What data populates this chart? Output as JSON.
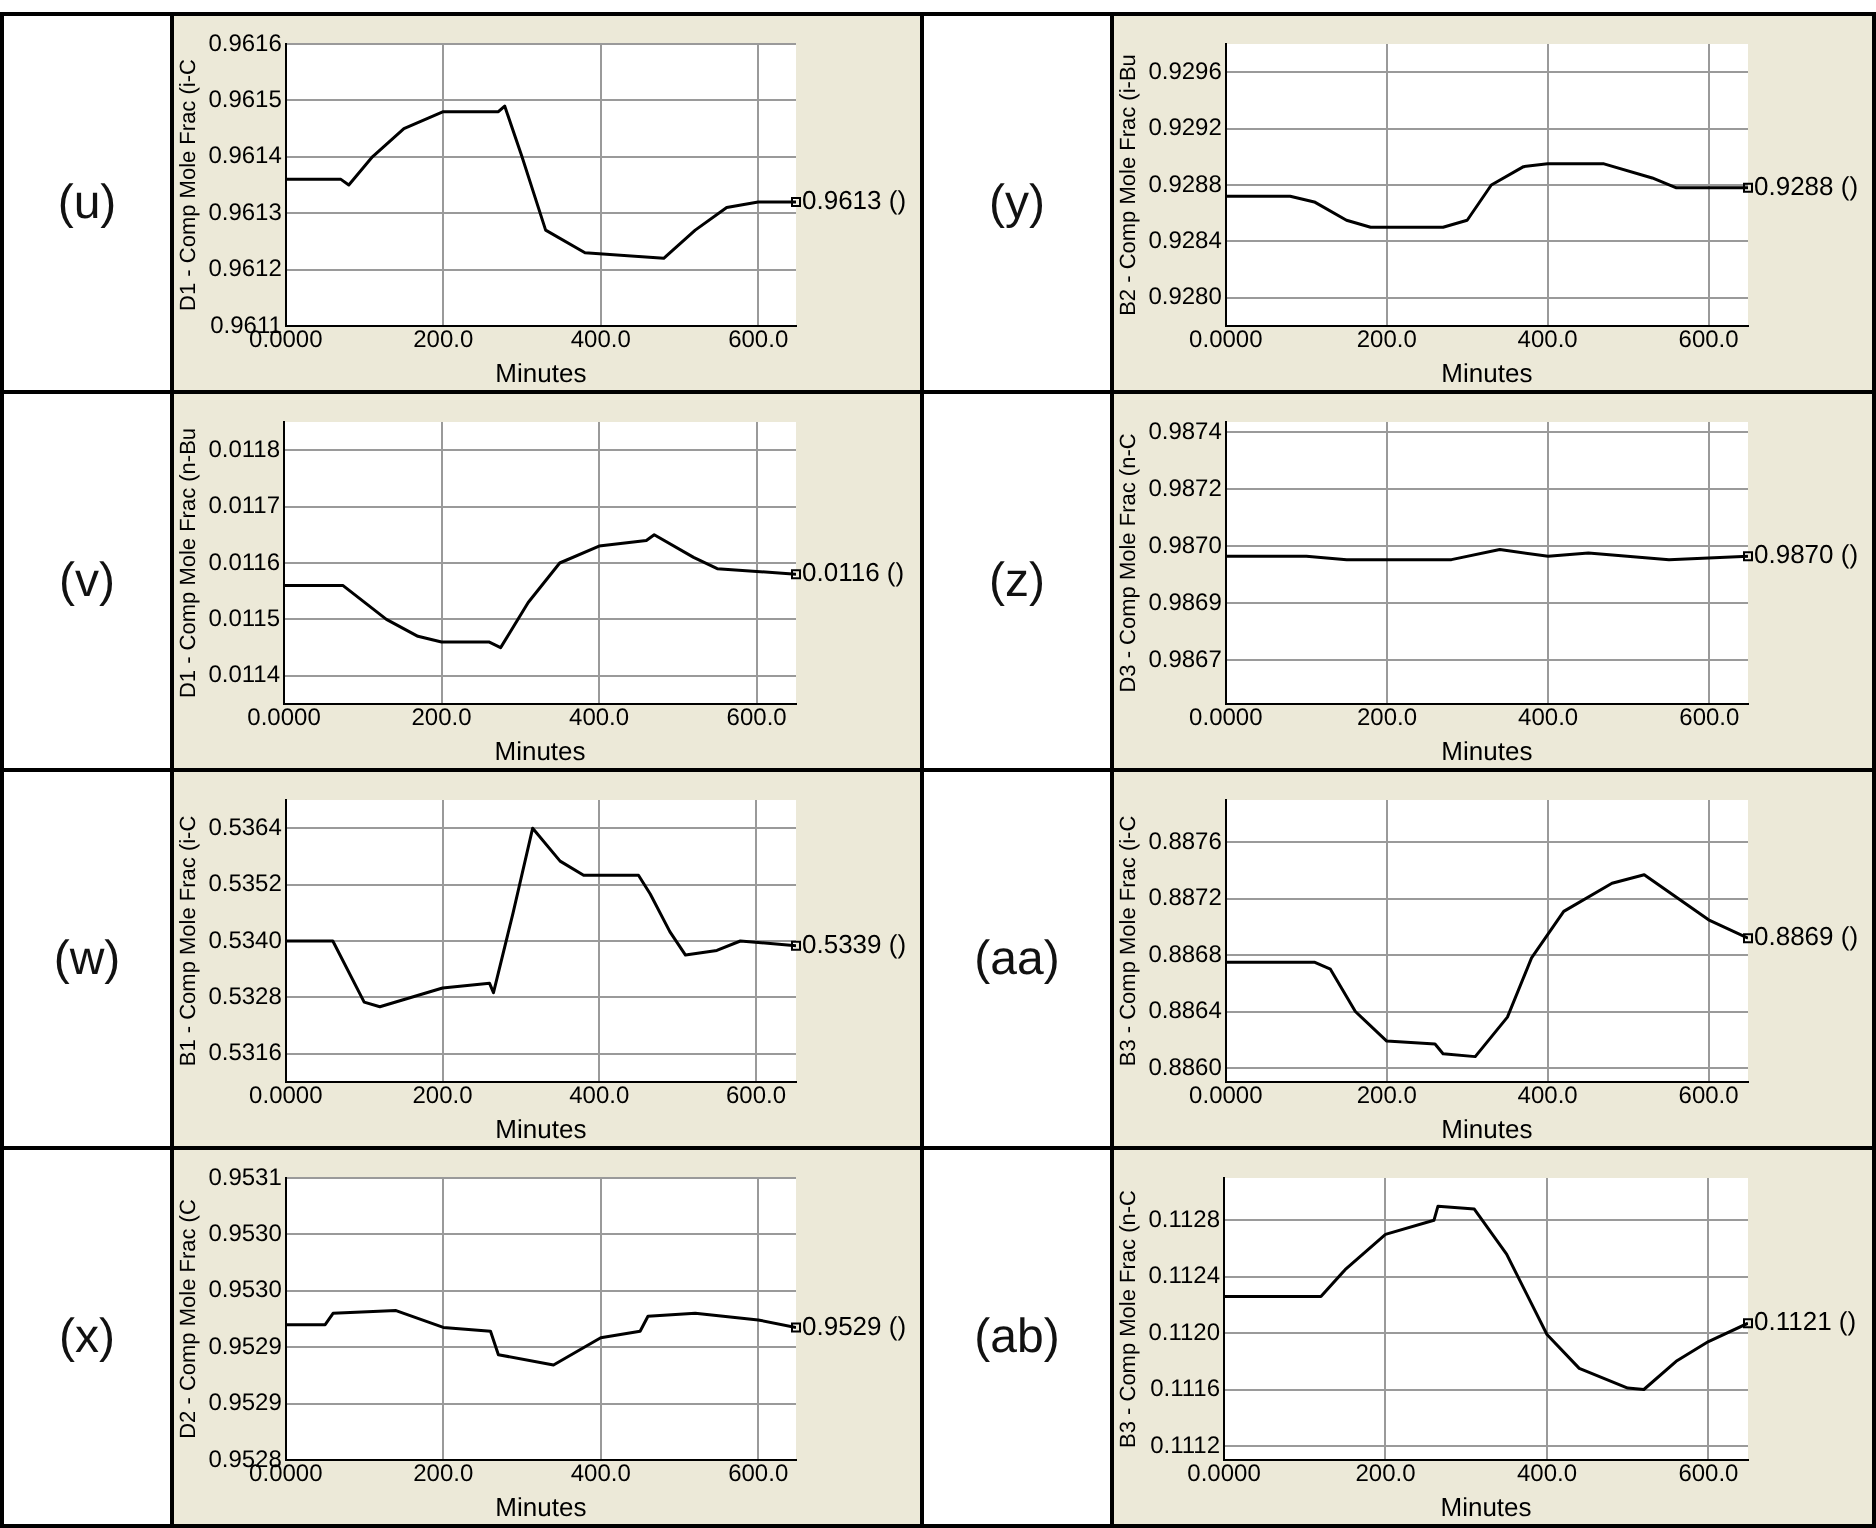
{
  "chart_data": [
    {
      "type": "line",
      "title": "(u)",
      "xlabel": "Minutes",
      "ylabel": "D1 - Comp Mole Frac (i-C",
      "grid": true,
      "marker": "none",
      "line_style": "solid",
      "xlim": [
        0,
        648
      ],
      "xticks": [
        {
          "value": 0,
          "label": "0.0000"
        },
        {
          "value": 200,
          "label": "200.0"
        },
        {
          "value": 400,
          "label": "400.0"
        },
        {
          "value": 600,
          "label": "600.0"
        }
      ],
      "ylim": [
        0.9611,
        0.9616
      ],
      "yticks": [
        0.9611,
        0.9612,
        0.9613,
        0.9614,
        0.9615,
        0.9616
      ],
      "annotations": [
        {
          "text": "0.9613 ()",
          "x": 648,
          "y": 0.96132
        }
      ],
      "series": [
        {
          "color": "#000000",
          "x": [
            0,
            70,
            80,
            110,
            150,
            200,
            270,
            278,
            300,
            330,
            380,
            480,
            520,
            560,
            600,
            648
          ],
          "values": [
            0.96136,
            0.96136,
            0.96135,
            0.9614,
            0.96145,
            0.96148,
            0.96148,
            0.96149,
            0.9614,
            0.96127,
            0.96123,
            0.96122,
            0.96127,
            0.96131,
            0.96132,
            0.96132
          ]
        }
      ]
    },
    {
      "type": "line",
      "title": "(y)",
      "xlabel": "Minutes",
      "ylabel": "B2 - Comp Mole Frac (i-Bu",
      "grid": true,
      "marker": "none",
      "line_style": "solid",
      "xlim": [
        0,
        649
      ],
      "xticks": [
        {
          "value": 0,
          "label": "0.0000"
        },
        {
          "value": 200,
          "label": "200.0"
        },
        {
          "value": 400,
          "label": "400.0"
        },
        {
          "value": 600,
          "label": "600.0"
        }
      ],
      "ylim": [
        0.9278,
        0.9298
      ],
      "yticks": [
        {
          "value": 0.928,
          "label": "0.9280"
        },
        0.9284,
        0.9288,
        0.9292,
        0.9296
      ],
      "annotations": [
        {
          "text": "0.9288 ()",
          "x": 649,
          "y": 0.92878
        }
      ],
      "series": [
        {
          "color": "#000000",
          "x": [
            0,
            80,
            110,
            150,
            180,
            270,
            300,
            330,
            370,
            400,
            470,
            530,
            560,
            649
          ],
          "values": [
            0.92872,
            0.92872,
            0.92868,
            0.92855,
            0.9285,
            0.9285,
            0.92855,
            0.9288,
            0.92893,
            0.92895,
            0.92895,
            0.92885,
            0.92878,
            0.92878
          ]
        }
      ]
    },
    {
      "type": "line",
      "title": "(v)",
      "xlabel": "Minutes",
      "ylabel": "D1 - Comp Mole Frac (n-Bu",
      "grid": true,
      "marker": "none",
      "line_style": "solid",
      "xlim": [
        0,
        650
      ],
      "xticks": [
        {
          "value": 0,
          "label": "0.0000"
        },
        {
          "value": 200,
          "label": "200.0"
        },
        {
          "value": 400,
          "label": "400.0"
        },
        {
          "value": 600,
          "label": "600.0"
        }
      ],
      "ylim": [
        0.01135,
        0.01185
      ],
      "yticks": [
        0.0114,
        0.0115,
        0.0116,
        0.0117,
        0.0118
      ],
      "annotations": [
        {
          "text": "0.0116 ()",
          "x": 650,
          "y": 0.01158
        }
      ],
      "series": [
        {
          "color": "#000000",
          "x": [
            0,
            75,
            130,
            170,
            200,
            260,
            275,
            310,
            350,
            400,
            460,
            470,
            520,
            550,
            650
          ],
          "values": [
            0.01156,
            0.01156,
            0.0115,
            0.01147,
            0.01146,
            0.01146,
            0.01145,
            0.01153,
            0.0116,
            0.01163,
            0.01164,
            0.01165,
            0.01161,
            0.01159,
            0.01158
          ]
        }
      ]
    },
    {
      "type": "line",
      "title": "(z)",
      "xlabel": "Minutes",
      "ylabel": "D3 - Comp Mole Frac (n-C",
      "grid": true,
      "marker": "none",
      "line_style": "solid",
      "xlim": [
        0,
        648
      ],
      "xticks": [
        {
          "value": 0,
          "label": "0.0000"
        },
        {
          "value": 200,
          "label": "200.0"
        },
        {
          "value": 400,
          "label": "400.0"
        },
        {
          "value": 600,
          "label": "600.0"
        }
      ],
      "ylim": [
        0.98655,
        0.98739
      ],
      "yticks": [
        {
          "value": 0.98668,
          "label": "0.9867"
        },
        {
          "value": 0.98685,
          "label": "0.9869"
        },
        {
          "value": 0.98702,
          "label": "0.9870"
        },
        {
          "value": 0.98719,
          "label": "0.9872"
        },
        {
          "value": 0.98736,
          "label": "0.9874"
        }
      ],
      "annotations": [
        {
          "text": "0.9870 ()",
          "x": 648,
          "y": 0.98699
        }
      ],
      "series": [
        {
          "color": "#000000",
          "x": [
            0,
            100,
            150,
            280,
            340,
            400,
            450,
            550,
            648
          ],
          "values": [
            0.98699,
            0.98699,
            0.98698,
            0.98698,
            0.98701,
            0.98699,
            0.987,
            0.98698,
            0.98699
          ]
        }
      ]
    },
    {
      "type": "line",
      "title": "(w)",
      "xlabel": "Minutes",
      "ylabel": "B1 - Comp Mole Frac (i-C",
      "grid": true,
      "marker": "none",
      "line_style": "solid",
      "xlim": [
        0,
        651
      ],
      "xticks": [
        {
          "value": 0,
          "label": "0.0000"
        },
        {
          "value": 200,
          "label": "200.0"
        },
        {
          "value": 400,
          "label": "400.0"
        },
        {
          "value": 600,
          "label": "600.0"
        }
      ],
      "ylim": [
        0.531,
        0.537
      ],
      "yticks": [
        0.5316,
        0.5328,
        {
          "value": 0.534,
          "label": "0.5340"
        },
        0.5352,
        0.5364
      ],
      "annotations": [
        {
          "text": "0.5339 ()",
          "x": 651,
          "y": 0.5339
        }
      ],
      "series": [
        {
          "color": "#000000",
          "x": [
            0,
            60,
            100,
            120,
            200,
            260,
            265,
            290,
            315,
            350,
            380,
            450,
            465,
            490,
            510,
            550,
            580,
            651
          ],
          "values": [
            0.534,
            0.534,
            0.5327,
            0.5326,
            0.533,
            0.5331,
            0.5329,
            0.5346,
            0.5364,
            0.5357,
            0.5354,
            0.5354,
            0.535,
            0.5342,
            0.5337,
            0.5338,
            0.534,
            0.5339
          ]
        }
      ]
    },
    {
      "type": "line",
      "title": "(aa)",
      "xlabel": "Minutes",
      "ylabel": "B3 - Comp Mole Frac (i-C",
      "grid": true,
      "marker": "none",
      "line_style": "solid",
      "xlim": [
        0,
        649
      ],
      "xticks": [
        {
          "value": 0,
          "label": "0.0000"
        },
        {
          "value": 200,
          "label": "200.0"
        },
        {
          "value": 400,
          "label": "400.0"
        },
        {
          "value": 600,
          "label": "600.0"
        }
      ],
      "ylim": [
        0.8859,
        0.8879
      ],
      "yticks": [
        {
          "value": 0.886,
          "label": "0.8860"
        },
        0.8864,
        0.8868,
        0.8872,
        0.8876
      ],
      "annotations": [
        {
          "text": "0.8869 ()",
          "x": 649,
          "y": 0.88692
        }
      ],
      "series": [
        {
          "color": "#000000",
          "x": [
            0,
            110,
            130,
            161,
            200,
            260,
            270,
            310,
            350,
            380,
            420,
            480,
            520,
            560,
            600,
            649
          ],
          "values": [
            0.88675,
            0.88675,
            0.8867,
            0.8864,
            0.88619,
            0.88617,
            0.8861,
            0.88608,
            0.88636,
            0.88678,
            0.88711,
            0.88731,
            0.88737,
            0.88721,
            0.88705,
            0.88692
          ]
        }
      ]
    },
    {
      "type": "line",
      "title": "(x)",
      "xlabel": "Minutes",
      "ylabel": "D2 - Comp Mole Frac (C",
      "grid": true,
      "marker": "none",
      "line_style": "solid",
      "xlim": [
        0,
        648
      ],
      "xticks": [
        {
          "value": 0,
          "label": "0.0000"
        },
        {
          "value": 200,
          "label": "200.0"
        },
        {
          "value": 400,
          "label": "400.0"
        },
        {
          "value": 600,
          "label": "600.0"
        }
      ],
      "ylim": [
        0.9528,
        0.9531
      ],
      "yticks": [
        {
          "value": 0.9528,
          "label": "0.9528"
        },
        {
          "value": 0.95286,
          "label": "0.9529"
        },
        {
          "value": 0.95292,
          "label": "0.9529"
        },
        {
          "value": 0.95298,
          "label": "0.9530"
        },
        {
          "value": 0.95304,
          "label": "0.9530"
        },
        {
          "value": 0.9531,
          "label": "0.9531"
        }
      ],
      "annotations": [
        {
          "text": "0.9529 ()",
          "x": 648,
          "y": 0.952941
        }
      ],
      "series": [
        {
          "color": "#000000",
          "x": [
            0,
            50,
            60,
            140,
            200,
            260,
            270,
            340,
            400,
            450,
            460,
            520,
            600,
            648
          ],
          "values": [
            0.952944,
            0.952944,
            0.952956,
            0.952959,
            0.952941,
            0.952937,
            0.952912,
            0.952901,
            0.95293,
            0.952937,
            0.952953,
            0.952956,
            0.952949,
            0.952941
          ]
        }
      ]
    },
    {
      "type": "line",
      "title": "(ab)",
      "xlabel": "Minutes",
      "ylabel": "B3 - Comp Mole Frac (n-C",
      "grid": true,
      "marker": "none",
      "line_style": "solid",
      "xlim": [
        0,
        649
      ],
      "xticks": [
        {
          "value": 0,
          "label": "0.0000"
        },
        {
          "value": 200,
          "label": "200.0"
        },
        {
          "value": 400,
          "label": "400.0"
        },
        {
          "value": 600,
          "label": "600.0"
        }
      ],
      "ylim": [
        0.1111,
        0.1131
      ],
      "yticks": [
        0.1112,
        0.1116,
        {
          "value": 0.112,
          "label": "0.1120"
        },
        0.1124,
        0.1128
      ],
      "annotations": [
        {
          "text": "0.1121 ()",
          "x": 649,
          "y": 0.11207
        }
      ],
      "series": [
        {
          "color": "#000000",
          "x": [
            0,
            120,
            150,
            200,
            260,
            265,
            310,
            350,
            400,
            440,
            500,
            520,
            560,
            600,
            649
          ],
          "values": [
            0.11226,
            0.11226,
            0.11245,
            0.1127,
            0.1128,
            0.1129,
            0.11288,
            0.11256,
            0.11199,
            0.11175,
            0.11161,
            0.1116,
            0.1118,
            0.11194,
            0.11207
          ]
        }
      ]
    }
  ]
}
